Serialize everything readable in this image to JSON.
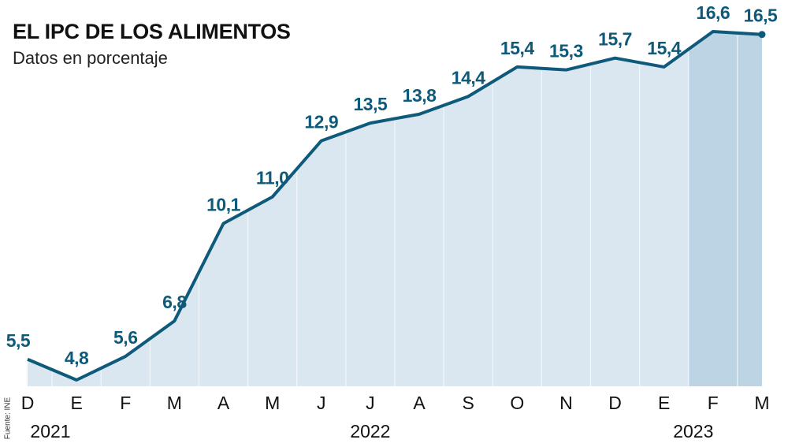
{
  "chart_data": {
    "type": "area",
    "title": "EL IPC DE LOS ALIMENTOS",
    "subtitle": "Datos en porcentaje",
    "source": "Fuente: INE",
    "categories": [
      "D",
      "E",
      "F",
      "M",
      "A",
      "M",
      "J",
      "J",
      "A",
      "S",
      "O",
      "N",
      "D",
      "E",
      "F",
      "M"
    ],
    "years": [
      {
        "label": "2021",
        "at": 0
      },
      {
        "label": "2022",
        "at": 7
      },
      {
        "label": "2023",
        "at": 14
      }
    ],
    "values": [
      5.5,
      4.8,
      5.6,
      6.8,
      10.1,
      11.0,
      12.9,
      13.5,
      13.8,
      14.4,
      15.4,
      15.3,
      15.7,
      15.4,
      16.6,
      16.5
    ],
    "data_labels": [
      "5,5",
      "4,8",
      "5,6",
      "6,8",
      "10,1",
      "11,0",
      "12,9",
      "13,5",
      "13,8",
      "14,4",
      "15,4",
      "15,3",
      "15,7",
      "15,4",
      "16,6",
      "16,5"
    ],
    "highlight_from_index": 14,
    "grid": false,
    "colors": {
      "line": "#0e5a7a",
      "fill": "#dbe7f0",
      "highlight_fill": "#bcd4e4",
      "divider": "#f2f6f9"
    }
  }
}
